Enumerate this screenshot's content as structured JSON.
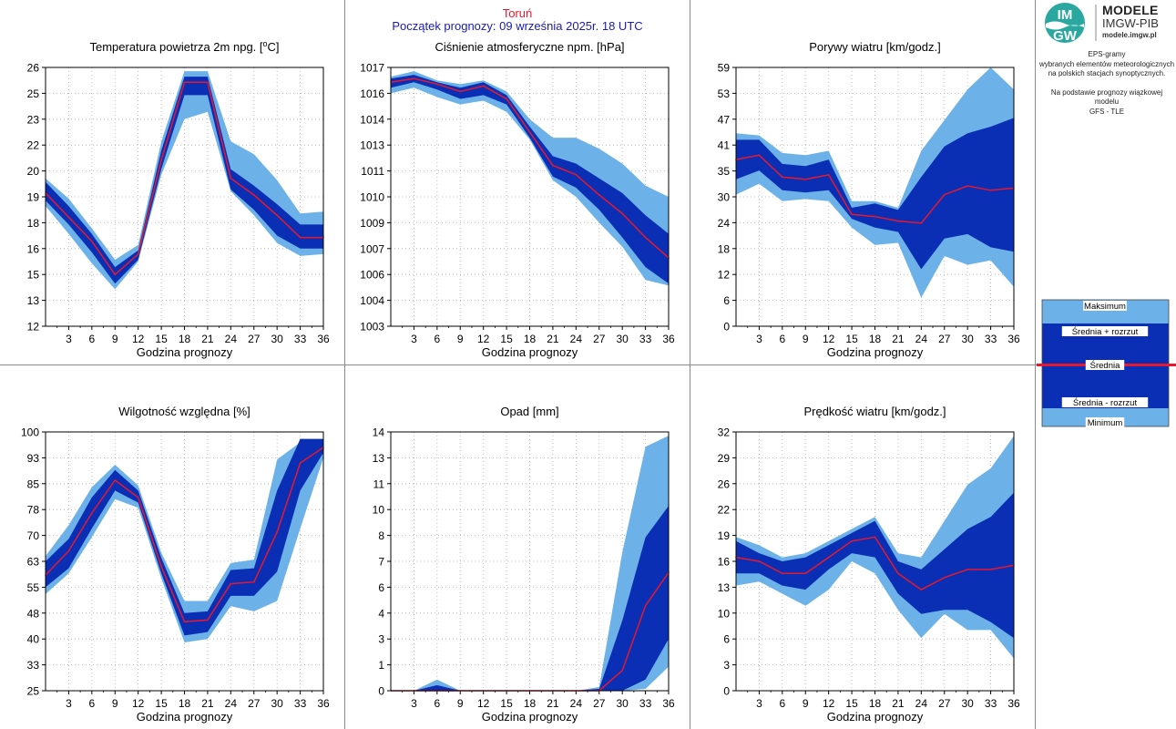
{
  "header": {
    "station": "Toruń",
    "forecast_start": "Początek prognozy: 09 września 2025r. 18 UTC"
  },
  "logo": {
    "badge_top": "IM",
    "badge_bottom": "GW",
    "title": "MODELE",
    "subtitle": "IMGW-PIB",
    "url": "modele.imgw.pl"
  },
  "description": {
    "line1": "EPS-gramy",
    "line2": "wybranych elementów meteorologicznych",
    "line3": "na polskich stacjach  synoptycznych.",
    "line4": "Na podstawie prognozy wiązkowej modelu",
    "line5": "GFS - TLE"
  },
  "legend": {
    "max": "Maksimum",
    "mean_plus": "Średnia + rozrzut",
    "mean": "Średnia",
    "mean_minus": "Średnia - rozrzut",
    "min": "Minimum"
  },
  "colors": {
    "outer_band": "#6cb2e8",
    "inner_band": "#0a2fb4",
    "mean_line": "#e8182c",
    "station_text": "#e8182c",
    "start_text": "#1a1ab4",
    "grid": "#b0b0b0"
  },
  "chart_data": [
    {
      "type": "area",
      "title_pre": "Temperatura powietrza 2m npg. [",
      "title_sup": "o",
      "title_post": "C]",
      "xlabel": "Godzina prognozy",
      "x": [
        0,
        3,
        6,
        9,
        12,
        15,
        18,
        21,
        24,
        27,
        30,
        33,
        36
      ],
      "xticks": [
        "3",
        "6",
        "9",
        "12",
        "15",
        "18",
        "21",
        "24",
        "27",
        "30",
        "33",
        "36"
      ],
      "ylim": [
        12,
        26
      ],
      "yticks": [
        "12",
        "13",
        "15",
        "16",
        "18",
        "19",
        "20",
        "22",
        "23",
        "25",
        "26"
      ],
      "max": [
        20.0,
        18.9,
        17.3,
        15.6,
        16.4,
        22.0,
        25.8,
        25.8,
        22.0,
        21.3,
        19.9,
        18.1,
        18.2
      ],
      "upper": [
        19.8,
        18.5,
        17.0,
        15.2,
        16.1,
        21.5,
        25.5,
        25.5,
        20.5,
        19.6,
        18.6,
        17.5,
        17.5
      ],
      "mean": [
        19.2,
        17.9,
        16.6,
        14.8,
        15.9,
        21.0,
        25.2,
        25.2,
        20.0,
        19.1,
        18.0,
        16.8,
        16.8
      ],
      "lower": [
        18.8,
        17.5,
        16.0,
        14.3,
        15.6,
        20.5,
        24.5,
        24.5,
        19.4,
        18.3,
        16.9,
        16.2,
        16.2
      ],
      "min": [
        18.5,
        17.0,
        15.4,
        14.0,
        15.5,
        20.2,
        23.2,
        23.6,
        19.3,
        18.0,
        16.5,
        15.8,
        15.9
      ]
    },
    {
      "type": "area",
      "title_pre": "Ciśnienie atmosferyczne npm. [hPa]",
      "title_sup": "",
      "title_post": "",
      "xlabel": "Godzina prognozy",
      "x": [
        0,
        3,
        6,
        9,
        12,
        15,
        18,
        21,
        24,
        27,
        30,
        33,
        36
      ],
      "xticks": [
        "3",
        "6",
        "9",
        "12",
        "15",
        "18",
        "21",
        "24",
        "27",
        "30",
        "33",
        "36"
      ],
      "ylim": [
        1003,
        1017
      ],
      "yticks": [
        "1003",
        "1004",
        "1006",
        "1007",
        "1009",
        "1010",
        "1011",
        "1013",
        "1014",
        "1016",
        "1017"
      ],
      "max": [
        1016.5,
        1016.8,
        1016.3,
        1016.1,
        1016.3,
        1015.7,
        1014.2,
        1013.2,
        1013.2,
        1012.6,
        1011.8,
        1010.6,
        1010.0
      ],
      "upper": [
        1016.4,
        1016.6,
        1016.2,
        1015.9,
        1016.2,
        1015.5,
        1013.8,
        1012.2,
        1011.8,
        1011.0,
        1010.2,
        1009.0,
        1008.0
      ],
      "mean": [
        1016.2,
        1016.4,
        1016.1,
        1015.7,
        1016.0,
        1015.3,
        1013.5,
        1011.7,
        1011.2,
        1010.1,
        1009.1,
        1007.8,
        1006.7
      ],
      "lower": [
        1015.9,
        1016.2,
        1015.8,
        1015.3,
        1015.5,
        1015.0,
        1013.2,
        1011.1,
        1010.5,
        1009.3,
        1007.8,
        1006.2,
        1005.3
      ],
      "min": [
        1015.6,
        1015.9,
        1015.4,
        1015.0,
        1015.2,
        1014.6,
        1013.1,
        1010.9,
        1010.0,
        1008.6,
        1007.3,
        1005.5,
        1005.2
      ]
    },
    {
      "type": "area",
      "title_pre": "Porywy wiatru [km/godz.]",
      "title_sup": "",
      "title_post": "",
      "xlabel": "Godzina prognozy",
      "x": [
        0,
        3,
        6,
        9,
        12,
        15,
        18,
        21,
        24,
        27,
        30,
        33,
        36
      ],
      "xticks": [
        "3",
        "6",
        "9",
        "12",
        "15",
        "18",
        "21",
        "24",
        "27",
        "30",
        "33",
        "36"
      ],
      "ylim": [
        0,
        59
      ],
      "yticks": [
        "0",
        "6",
        "12",
        "18",
        "24",
        "30",
        "35",
        "41",
        "47",
        "53",
        "59"
      ],
      "max": [
        44.0,
        43.5,
        39.5,
        39.0,
        40.0,
        28.5,
        28.5,
        27.0,
        40.0,
        47.0,
        54.0,
        59.0,
        54.0
      ],
      "upper": [
        42.5,
        42.5,
        37.0,
        36.5,
        38.0,
        27.0,
        28.0,
        26.5,
        34.0,
        41.0,
        44.0,
        45.5,
        47.5
      ],
      "mean": [
        38.0,
        39.0,
        34.0,
        33.5,
        34.5,
        25.5,
        25.0,
        24.0,
        23.5,
        30.0,
        32.0,
        31.0,
        31.5
      ],
      "lower": [
        33.5,
        35.5,
        31.0,
        30.5,
        31.0,
        24.5,
        22.5,
        21.5,
        13.0,
        20.0,
        21.0,
        18.0,
        17.0
      ],
      "min": [
        30.0,
        32.5,
        28.5,
        29.0,
        28.5,
        22.5,
        18.5,
        19.0,
        6.5,
        16.0,
        14.0,
        15.0,
        9.0
      ]
    },
    {
      "type": "area",
      "title_pre": "Wilgotność względna [%]",
      "title_sup": "",
      "title_post": "",
      "xlabel": "Godzina prognozy",
      "x": [
        0,
        3,
        6,
        9,
        12,
        15,
        18,
        21,
        24,
        27,
        30,
        33,
        36
      ],
      "xticks": [
        "3",
        "6",
        "9",
        "12",
        "15",
        "18",
        "21",
        "24",
        "27",
        "30",
        "33",
        "36"
      ],
      "ylim": [
        25,
        100
      ],
      "yticks": [
        "25",
        "33",
        "40",
        "48",
        "55",
        "63",
        "70",
        "78",
        "85",
        "93",
        "100"
      ],
      "max": [
        64.0,
        73.0,
        84.0,
        90.5,
        84.5,
        65.0,
        51.0,
        51.0,
        62.0,
        63.0,
        92.0,
        97.0,
        97.0
      ],
      "upper": [
        62.5,
        69.0,
        81.0,
        89.0,
        83.0,
        63.5,
        47.5,
        48.0,
        60.0,
        60.5,
        83.0,
        98.0,
        98.0
      ],
      "mean": [
        58.5,
        65.5,
        76.5,
        86.0,
        81.0,
        61.0,
        45.0,
        45.5,
        56.0,
        56.5,
        71.0,
        91.0,
        95.5
      ],
      "lower": [
        55.0,
        60.5,
        72.0,
        83.0,
        79.5,
        59.0,
        41.0,
        42.0,
        52.5,
        52.5,
        59.5,
        83.0,
        94.0
      ],
      "min": [
        53.0,
        59.0,
        69.5,
        80.5,
        78.0,
        57.5,
        39.0,
        40.0,
        49.5,
        48.0,
        51.0,
        72.0,
        92.5
      ]
    },
    {
      "type": "area",
      "title_pre": "Opad [mm]",
      "title_sup": "",
      "title_post": "",
      "xlabel": "Godzina prognozy",
      "x": [
        0,
        3,
        6,
        9,
        12,
        15,
        18,
        21,
        24,
        27,
        30,
        33,
        36
      ],
      "xticks": [
        "3",
        "6",
        "9",
        "12",
        "15",
        "18",
        "21",
        "24",
        "27",
        "30",
        "33",
        "36"
      ],
      "ylim": [
        0,
        14
      ],
      "yticks": [
        "0",
        "1",
        "3",
        "4",
        "6",
        "7",
        "8",
        "10",
        "11",
        "13",
        "14"
      ],
      "max": [
        0,
        0,
        0.6,
        0,
        0,
        0,
        0,
        0,
        0,
        0.2,
        7.5,
        13.2,
        13.8
      ],
      "upper": [
        0,
        0,
        0.3,
        0,
        0,
        0,
        0,
        0,
        0,
        0.1,
        3.8,
        8.3,
        10.0
      ],
      "mean": [
        0,
        0,
        0,
        0,
        0,
        0,
        0,
        0,
        0,
        0,
        1.1,
        4.6,
        6.4
      ],
      "lower": [
        0,
        0,
        0,
        0,
        0,
        0,
        0,
        0,
        0,
        0,
        0,
        0.6,
        2.8
      ],
      "min": [
        0,
        0,
        0,
        0,
        0,
        0,
        0,
        0,
        0,
        0,
        0,
        0.1,
        1.3
      ]
    },
    {
      "type": "area",
      "title_pre": "Prędkość wiatru [km/godz.]",
      "title_sup": "",
      "title_post": "",
      "xlabel": "Godzina prognozy",
      "x": [
        0,
        3,
        6,
        9,
        12,
        15,
        18,
        21,
        24,
        27,
        30,
        33,
        36
      ],
      "xticks": [
        "3",
        "6",
        "9",
        "12",
        "15",
        "18",
        "21",
        "24",
        "27",
        "30",
        "33",
        "36"
      ],
      "ylim": [
        0,
        32
      ],
      "yticks": [
        "0",
        "3",
        "6",
        "10",
        "13",
        "16",
        "19",
        "22",
        "26",
        "29",
        "32"
      ],
      "max": [
        19.0,
        18.0,
        16.5,
        17.0,
        18.5,
        20.0,
        21.5,
        17.0,
        16.5,
        21.0,
        25.5,
        27.5,
        31.5
      ],
      "upper": [
        18.5,
        17.0,
        16.0,
        16.5,
        18.0,
        19.5,
        21.0,
        16.0,
        15.0,
        17.5,
        20.0,
        21.5,
        24.5
      ],
      "mean": [
        16.5,
        16.0,
        14.5,
        14.5,
        16.5,
        18.5,
        19.0,
        14.5,
        12.5,
        14.0,
        15.0,
        15.0,
        15.5
      ],
      "lower": [
        14.5,
        14.5,
        13.0,
        12.5,
        15.0,
        17.0,
        16.5,
        12.0,
        9.5,
        10.0,
        10.0,
        8.5,
        6.5
      ],
      "min": [
        13.0,
        13.5,
        12.0,
        10.5,
        12.5,
        16.0,
        14.5,
        10.0,
        6.5,
        9.5,
        7.5,
        7.5,
        4.0
      ]
    }
  ]
}
